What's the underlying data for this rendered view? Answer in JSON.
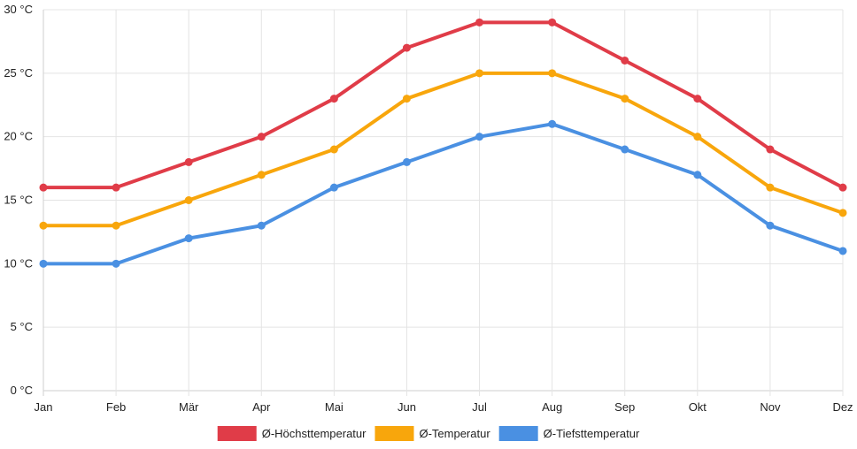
{
  "chart_data": {
    "type": "line",
    "categories": [
      "Jan",
      "Feb",
      "Mär",
      "Apr",
      "Mai",
      "Jun",
      "Jul",
      "Aug",
      "Sep",
      "Okt",
      "Nov",
      "Dez"
    ],
    "series": [
      {
        "name": "Ø-Höchsttemperatur",
        "color": "#e03c48",
        "values": [
          16,
          16,
          18,
          20,
          23,
          27,
          29,
          29,
          26,
          23,
          19,
          16
        ]
      },
      {
        "name": "Ø-Temperatur",
        "color": "#f8a60c",
        "values": [
          13,
          13,
          15,
          17,
          19,
          23,
          25,
          25,
          23,
          20,
          16,
          14
        ]
      },
      {
        "name": "Ø-Tiefsttemperatur",
        "color": "#4a90e2",
        "values": [
          10,
          10,
          12,
          13,
          16,
          18,
          20,
          21,
          19,
          17,
          13,
          11
        ]
      }
    ],
    "y_ticks": [
      "0 °C",
      "5 °C",
      "10 °C",
      "15 °C",
      "20 °C",
      "25 °C",
      "30 °C"
    ],
    "y_tick_values": [
      0,
      5,
      10,
      15,
      20,
      25,
      30
    ],
    "ylim": [
      0,
      30
    ],
    "y_unit": "°C",
    "grid": true,
    "legend_position": "bottom-center"
  }
}
